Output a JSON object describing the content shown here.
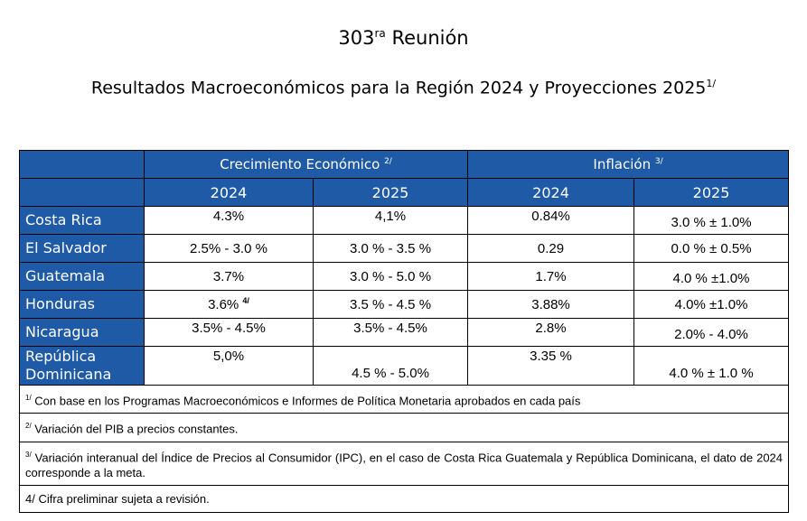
{
  "header": {
    "title_main": "303",
    "title_sup": "ra",
    "title_rest": " Reunión",
    "subtitle_main": "Resultados Macroeconómicos para la Región 2024 y Proyecciones 2025",
    "subtitle_sup": "1/"
  },
  "table": {
    "group_growth": "Crecimiento Económico",
    "group_growth_sup": "2/",
    "group_inflation": "Inflación",
    "group_inflation_sup": "3/",
    "years": [
      "2024",
      "2025",
      "2024",
      "2025"
    ],
    "rows": [
      {
        "country": "Costa Rica",
        "g2024": "4.3%",
        "g2024_sup": "",
        "g2025": "4,1%",
        "i2024": "0.84%",
        "i2025": "3.0 % ± 1.0%"
      },
      {
        "country": "El Salvador",
        "g2024": "2.5% - 3.0 %",
        "g2024_sup": "",
        "g2025": "3.0 % - 3.5 %",
        "i2024": "0.29",
        "i2025": "0.0 % ± 0.5%"
      },
      {
        "country": "Guatemala",
        "g2024": "3.7%",
        "g2024_sup": "",
        "g2025": "3.0 % - 5.0 %",
        "i2024": "1.7%",
        "i2025": "4.0 % ±1.0%"
      },
      {
        "country": "Honduras",
        "g2024": "3.6% ",
        "g2024_sup": "4/",
        "g2025": "3.5 % - 4.5 %",
        "i2024": "3.88%",
        "i2025": "4.0% ±1.0%"
      },
      {
        "country": "Nicaragua",
        "g2024": "3.5% - 4.5%",
        "g2024_sup": "",
        "g2025": "3.5% - 4.5%",
        "i2024": "2.8%",
        "i2025": "2.0% - 4.0%"
      },
      {
        "country_l1": "República",
        "country_l2": "Dominicana",
        "g2024": "5,0%",
        "g2024_sup": "",
        "g2025": "4.5 % - 5.0%",
        "i2024": "3.35 %",
        "i2025": "4.0 % ± 1.0 %"
      }
    ]
  },
  "notes": [
    {
      "sup": "1/",
      "text": " Con base en los Programas Macroeconómicos e Informes de Política Monetaria aprobados en cada país"
    },
    {
      "sup": "2/",
      "text": " Variación del PIB a precios constantes."
    },
    {
      "sup": "3/",
      "text": " Variación interanual del Índice de Precios al Consumidor (IPC), en el caso de Costa Rica Guatemala y República Dominicana, el dato de 2024 corresponde a la meta."
    },
    {
      "sup": "",
      "text": "4/ Cifra preliminar sujeta a revisión."
    }
  ],
  "colors": {
    "header_blue": "#1f5aa6",
    "text": "#000000",
    "background": "#ffffff"
  }
}
